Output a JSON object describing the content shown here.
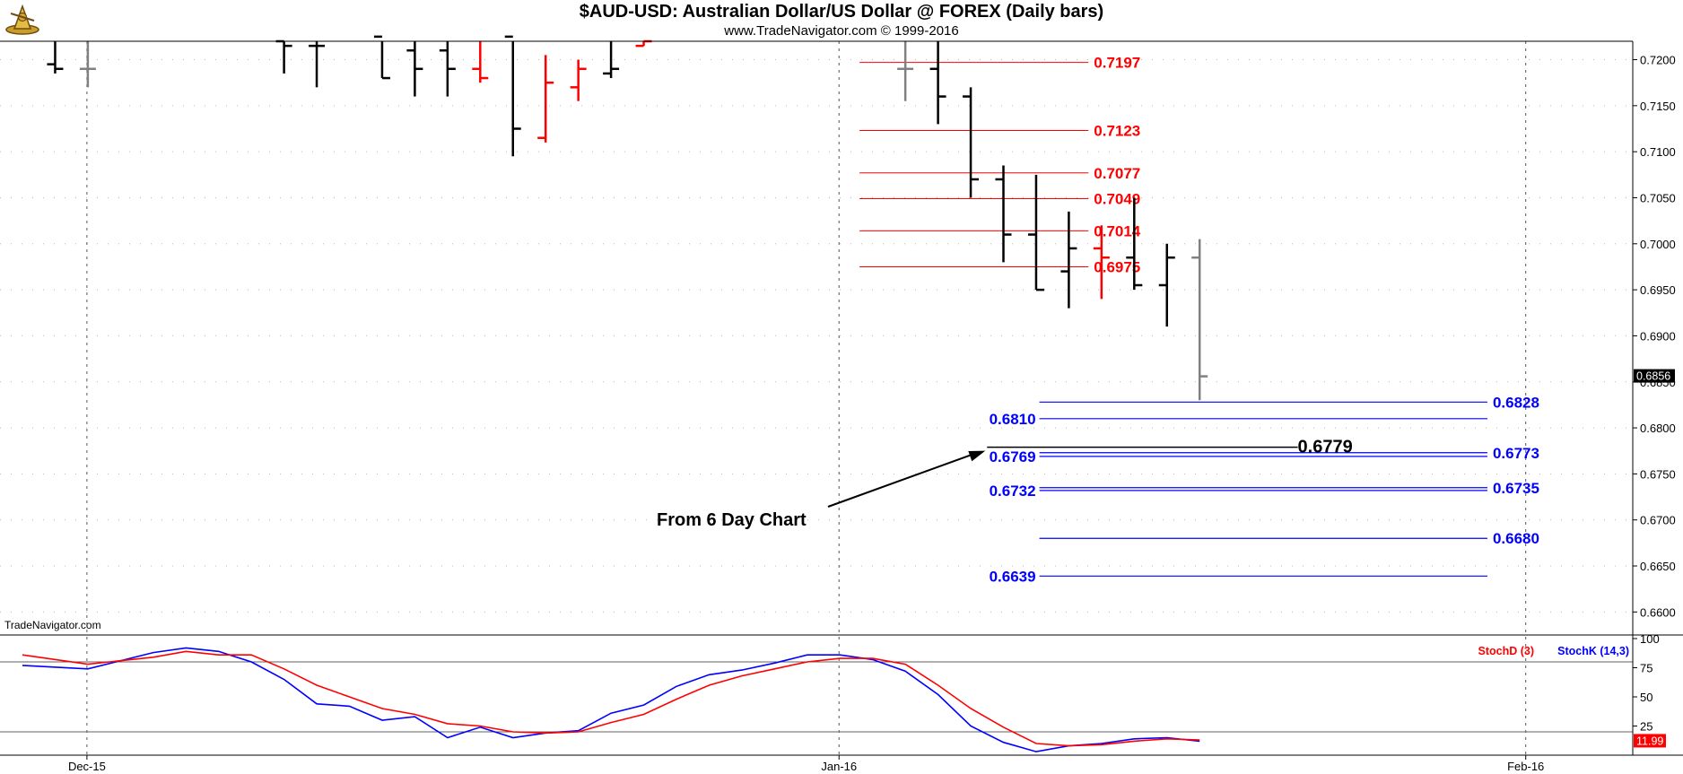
{
  "header": {
    "title": "$AUD-USD:  Australian Dollar/US Dollar @ FOREX  (Daily bars)",
    "subtitle": "www.TradeNavigator.com © 1999-2016",
    "watermark": "TradeNavigator.com"
  },
  "chart_data": [
    {
      "type": "ohlc",
      "ylim": [
        0.6575,
        0.722
      ],
      "y_ticks": [
        0.66,
        0.665,
        0.67,
        0.675,
        0.68,
        0.685,
        0.69,
        0.695,
        0.7,
        0.705,
        0.71,
        0.715,
        0.72
      ],
      "last_price_label": "0.6856",
      "x_date_labels": [
        {
          "label": "Dec-15",
          "index": 2
        },
        {
          "label": "Jan-16",
          "index": 25
        },
        {
          "label": "Feb-16",
          "index": 46
        }
      ],
      "bars": [
        {
          "i": 1,
          "o": 0.7195,
          "h": 0.7225,
          "l": 0.7185,
          "c": 0.719,
          "color": "black"
        },
        {
          "i": 2,
          "o": 0.719,
          "h": 0.7225,
          "l": 0.717,
          "c": 0.719,
          "color": "gray"
        },
        {
          "i": 8,
          "o": 0.722,
          "h": 0.7225,
          "l": 0.7185,
          "c": 0.7215,
          "color": "black"
        },
        {
          "i": 9,
          "o": 0.7215,
          "h": 0.7225,
          "l": 0.717,
          "c": 0.7215,
          "color": "black"
        },
        {
          "i": 11,
          "o": 0.7225,
          "h": 0.7225,
          "l": 0.718,
          "c": 0.718,
          "color": "black"
        },
        {
          "i": 12,
          "o": 0.721,
          "h": 0.7225,
          "l": 0.716,
          "c": 0.719,
          "color": "black"
        },
        {
          "i": 13,
          "o": 0.721,
          "h": 0.7225,
          "l": 0.716,
          "c": 0.719,
          "color": "black"
        },
        {
          "i": 14,
          "o": 0.719,
          "h": 0.7225,
          "l": 0.7175,
          "c": 0.718,
          "color": "red"
        },
        {
          "i": 15,
          "o": 0.7225,
          "h": 0.7225,
          "l": 0.7095,
          "c": 0.7125,
          "color": "black"
        },
        {
          "i": 16,
          "o": 0.7115,
          "h": 0.7205,
          "l": 0.711,
          "c": 0.7175,
          "color": "red"
        },
        {
          "i": 17,
          "o": 0.717,
          "h": 0.72,
          "l": 0.7155,
          "c": 0.719,
          "color": "red"
        },
        {
          "i": 18,
          "o": 0.7185,
          "h": 0.7225,
          "l": 0.718,
          "c": 0.719,
          "color": "black"
        },
        {
          "i": 19,
          "o": 0.7215,
          "h": 0.7225,
          "l": 0.7215,
          "c": 0.722,
          "color": "red"
        },
        {
          "i": 27,
          "o": 0.719,
          "h": 0.7225,
          "l": 0.7155,
          "c": 0.719,
          "color": "gray"
        },
        {
          "i": 28,
          "o": 0.719,
          "h": 0.722,
          "l": 0.713,
          "c": 0.716,
          "color": "black"
        },
        {
          "i": 29,
          "o": 0.716,
          "h": 0.717,
          "l": 0.705,
          "c": 0.707,
          "color": "black"
        },
        {
          "i": 30,
          "o": 0.707,
          "h": 0.7085,
          "l": 0.698,
          "c": 0.701,
          "color": "black"
        },
        {
          "i": 31,
          "o": 0.701,
          "h": 0.7075,
          "l": 0.695,
          "c": 0.695,
          "color": "black"
        },
        {
          "i": 32,
          "o": 0.697,
          "h": 0.7035,
          "l": 0.693,
          "c": 0.6995,
          "color": "black"
        },
        {
          "i": 33,
          "o": 0.6995,
          "h": 0.702,
          "l": 0.694,
          "c": 0.6985,
          "color": "red"
        },
        {
          "i": 34,
          "o": 0.6985,
          "h": 0.705,
          "l": 0.695,
          "c": 0.6955,
          "color": "black"
        },
        {
          "i": 35,
          "o": 0.6955,
          "h": 0.7,
          "l": 0.691,
          "c": 0.6985,
          "color": "black"
        },
        {
          "i": 36,
          "o": 0.6985,
          "h": 0.7005,
          "l": 0.683,
          "c": 0.6856,
          "color": "gray"
        }
      ],
      "resistance_levels": [
        "0.7197",
        "0.7123",
        "0.7077",
        "0.7049",
        "0.7014",
        "0.6975"
      ],
      "support_levels_right": [
        "0.6828",
        "0.6773",
        "0.6735",
        "0.6680"
      ],
      "support_levels_left": [
        "0.6810",
        "0.6769",
        "0.6732",
        "0.6639"
      ],
      "annotation": {
        "text": "From 6 Day Chart",
        "level": "0.6779"
      }
    },
    {
      "type": "line",
      "ylim": [
        0,
        100
      ],
      "y_ticks": [
        25,
        50,
        75,
        100
      ],
      "reference_lines": [
        80,
        20
      ],
      "last_value_label": "11.99",
      "x": [
        0,
        2,
        4,
        5,
        6,
        7,
        8,
        9,
        10,
        11,
        12,
        13,
        14,
        15,
        16,
        17,
        18,
        19,
        20,
        21,
        22,
        23,
        24,
        25,
        26,
        27,
        28,
        29,
        30,
        31,
        32,
        33,
        34,
        35,
        36
      ],
      "series": [
        {
          "name": "StochK (14,3)",
          "color": "#0000ff",
          "values": [
            77,
            74,
            88,
            92,
            89,
            80,
            65,
            44,
            42,
            30,
            33,
            15,
            24,
            15,
            19,
            21,
            36,
            43,
            59,
            69,
            73,
            79,
            86,
            86,
            82,
            72,
            52,
            25,
            11,
            3,
            8,
            10,
            14,
            15,
            12
          ]
        },
        {
          "name": "StochD (3)",
          "color": "#ff0000",
          "values": [
            86,
            78,
            84,
            89,
            86,
            86,
            74,
            60,
            50,
            40,
            35,
            27,
            25,
            20,
            19,
            20,
            28,
            35,
            48,
            60,
            68,
            74,
            80,
            83,
            83,
            78,
            60,
            40,
            24,
            10,
            8,
            9,
            12,
            14,
            13
          ]
        }
      ]
    }
  ]
}
